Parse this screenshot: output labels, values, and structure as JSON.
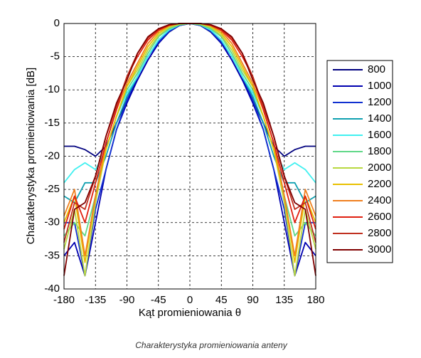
{
  "chart_data": {
    "type": "line",
    "caption": "Charakterystyka promieniowania anteny",
    "xlabel": "Kąt promieniowania θ",
    "ylabel": "Charakterystyka promieniowania [dB]",
    "x": [
      -180,
      -165,
      -150,
      -135,
      -120,
      -105,
      -90,
      -75,
      -60,
      -45,
      -30,
      -15,
      0,
      15,
      30,
      45,
      60,
      75,
      90,
      105,
      120,
      135,
      150,
      165,
      180
    ],
    "xlim": [
      -180,
      180
    ],
    "xticks": [
      -180,
      -135,
      -90,
      -45,
      0,
      45,
      90,
      135,
      180
    ],
    "ylim": [
      -40,
      0
    ],
    "yticks": [
      0,
      -5,
      -10,
      -15,
      -20,
      -25,
      -30,
      -35,
      -40
    ],
    "grid": true,
    "legend": "right",
    "series": [
      {
        "name": "800",
        "color": "#00007f",
        "values": [
          -18.5,
          -18.5,
          -19,
          -20,
          -18.5,
          -15,
          -11.5,
          -8.5,
          -5.5,
          -3,
          -1.3,
          -0.3,
          0,
          -0.3,
          -1.3,
          -3,
          -5.5,
          -8.5,
          -11.5,
          -15,
          -18.5,
          -20,
          -19,
          -18.5,
          -18.5
        ]
      },
      {
        "name": "1000",
        "color": "#0000b0",
        "values": [
          -35,
          -33,
          -38,
          -30,
          -22,
          -16,
          -12,
          -8.5,
          -5.5,
          -3,
          -1.2,
          -0.3,
          0,
          -0.3,
          -1.2,
          -3,
          -5.5,
          -8.5,
          -12,
          -16,
          -22,
          -30,
          -38,
          -33,
          -35
        ]
      },
      {
        "name": "1200",
        "color": "#1030d0",
        "values": [
          -30,
          -30,
          -38,
          -28,
          -22,
          -16,
          -11.5,
          -8,
          -5,
          -2.8,
          -1.2,
          -0.3,
          0,
          -0.3,
          -1.2,
          -2.8,
          -5,
          -8,
          -11.5,
          -16,
          -22,
          -28,
          -38,
          -30,
          -30
        ]
      },
      {
        "name": "1400",
        "color": "#10a0b0",
        "values": [
          -26,
          -27,
          -24,
          -24,
          -20,
          -15,
          -11,
          -8,
          -5,
          -2.5,
          -1,
          -0.2,
          0,
          -0.2,
          -1,
          -2.5,
          -5,
          -8,
          -11,
          -15,
          -20,
          -24,
          -24,
          -27,
          -26
        ]
      },
      {
        "name": "1600",
        "color": "#40f0f0",
        "values": [
          -24,
          -22,
          -21,
          -22,
          -19,
          -14,
          -10.5,
          -8,
          -5,
          -2.5,
          -1,
          -0.2,
          0,
          -0.2,
          -1,
          -2.5,
          -5,
          -8,
          -10.5,
          -14,
          -19,
          -22,
          -21,
          -22,
          -24
        ]
      },
      {
        "name": "1800",
        "color": "#60d888",
        "values": [
          -32,
          -30,
          -32,
          -26,
          -19,
          -14,
          -10,
          -7.5,
          -4.5,
          -2,
          -0.8,
          -0.2,
          0,
          -0.2,
          -0.8,
          -2,
          -4.5,
          -7.5,
          -10,
          -14,
          -19,
          -26,
          -32,
          -30,
          -32
        ]
      },
      {
        "name": "2000",
        "color": "#b8d840",
        "values": [
          -34,
          -28,
          -38,
          -27,
          -19,
          -14,
          -9.5,
          -7,
          -4,
          -1.8,
          -0.6,
          -0.1,
          0,
          -0.1,
          -0.6,
          -1.8,
          -4,
          -7,
          -9.5,
          -14,
          -19,
          -27,
          -38,
          -28,
          -34
        ]
      },
      {
        "name": "2200",
        "color": "#e8c000",
        "values": [
          -30,
          -26,
          -36,
          -26,
          -19,
          -14,
          -9.5,
          -6.5,
          -3.5,
          -1.5,
          -0.4,
          0,
          0,
          0,
          -0.4,
          -1.5,
          -3.5,
          -6.5,
          -9.5,
          -14,
          -19,
          -26,
          -36,
          -26,
          -30
        ]
      },
      {
        "name": "2400",
        "color": "#f08020",
        "values": [
          -29,
          -25,
          -35,
          -26,
          -18,
          -13,
          -9,
          -6,
          -3,
          -1.2,
          -0.3,
          0,
          0,
          0,
          -0.3,
          -1.2,
          -3,
          -6,
          -9,
          -13,
          -18,
          -26,
          -35,
          -25,
          -29
        ]
      },
      {
        "name": "2600",
        "color": "#e02010",
        "values": [
          -31,
          -26,
          -30,
          -24,
          -18,
          -13,
          -8,
          -5,
          -2.5,
          -1,
          -0.3,
          0,
          0,
          0,
          -0.3,
          -1,
          -2.5,
          -5,
          -8,
          -13,
          -18,
          -24,
          -30,
          -26,
          -31
        ]
      },
      {
        "name": "2800",
        "color": "#c03020",
        "values": [
          -33,
          -27,
          -28,
          -23,
          -17,
          -12.5,
          -8,
          -4.5,
          -2.2,
          -0.8,
          -0.2,
          0,
          0,
          0,
          -0.2,
          -0.8,
          -2.2,
          -4.5,
          -8,
          -12.5,
          -17,
          -23,
          -28,
          -27,
          -33
        ]
      },
      {
        "name": "3000",
        "color": "#800000",
        "values": [
          -38,
          -28,
          -27,
          -23,
          -17,
          -12,
          -8.5,
          -4.5,
          -2,
          -0.8,
          -0.2,
          0,
          0,
          0,
          -0.2,
          -0.8,
          -2,
          -4.5,
          -8.5,
          -12,
          -17,
          -23,
          -27,
          -28,
          -38
        ]
      }
    ]
  }
}
